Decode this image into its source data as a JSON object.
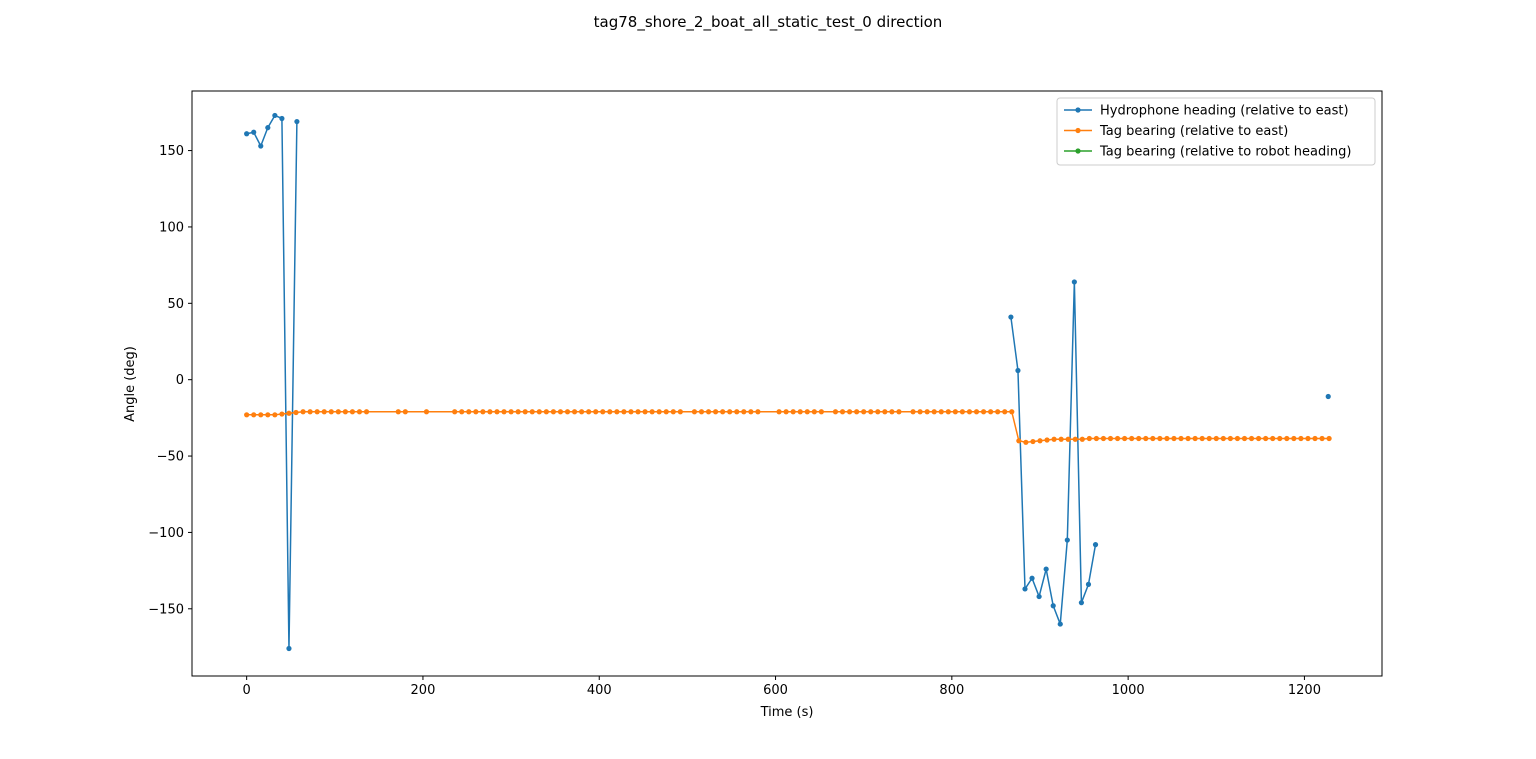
{
  "chart_data": {
    "type": "line",
    "title": "tag78_shore_2_boat_all_static_test_0 direction",
    "xlabel": "Time (s)",
    "ylabel": "Angle (deg)",
    "xlim": [
      -62,
      1288
    ],
    "ylim": [
      -194,
      189
    ],
    "xticks": [
      0,
      200,
      400,
      600,
      800,
      1000,
      1200
    ],
    "yticks": [
      -150,
      -100,
      -50,
      0,
      50,
      100,
      150
    ],
    "ytick_labels": [
      "−150",
      "−100",
      "−50",
      "0",
      "50",
      "100",
      "150"
    ],
    "grid": false,
    "legend_position": "top-right",
    "series": [
      {
        "name": "Hydrophone heading (relative to east)",
        "color": "#1f77b4",
        "segments": [
          [
            [
              0,
              161
            ],
            [
              8,
              162
            ],
            [
              16,
              153
            ],
            [
              24,
              165
            ],
            [
              32,
              173
            ],
            [
              40,
              171
            ],
            [
              48,
              -176
            ],
            [
              57,
              169
            ]
          ],
          [
            [
              867,
              41
            ],
            [
              875,
              6
            ],
            [
              883,
              -137
            ],
            [
              891,
              -130
            ],
            [
              899,
              -142
            ],
            [
              907,
              -124
            ],
            [
              915,
              -148
            ],
            [
              923,
              -160
            ],
            [
              931,
              -105
            ],
            [
              939,
              64
            ],
            [
              947,
              -146
            ],
            [
              955,
              -134
            ],
            [
              963,
              -108
            ]
          ],
          [
            [
              1227,
              -11
            ]
          ]
        ]
      },
      {
        "name": "Tag bearing (relative to east)",
        "color": "#ff7f0e",
        "segments": [
          [
            [
              0,
              -23
            ],
            [
              8,
              -23
            ],
            [
              16,
              -23
            ],
            [
              24,
              -23
            ],
            [
              32,
              -23
            ],
            [
              40,
              -22.5
            ],
            [
              48,
              -22
            ],
            [
              56,
              -21.5
            ],
            [
              64,
              -21
            ],
            [
              72,
              -21
            ],
            [
              80,
              -21
            ],
            [
              88,
              -21
            ],
            [
              96,
              -21
            ],
            [
              104,
              -21
            ],
            [
              112,
              -21
            ],
            [
              120,
              -21
            ],
            [
              128,
              -21
            ],
            [
              136,
              -21
            ],
            [
              172,
              -21
            ],
            [
              180,
              -21
            ],
            [
              204,
              -21
            ],
            [
              236,
              -21
            ],
            [
              244,
              -21
            ],
            [
              252,
              -21
            ],
            [
              260,
              -21
            ],
            [
              268,
              -21
            ],
            [
              276,
              -21
            ],
            [
              284,
              -21
            ],
            [
              292,
              -21
            ],
            [
              300,
              -21
            ],
            [
              308,
              -21
            ],
            [
              316,
              -21
            ],
            [
              324,
              -21
            ],
            [
              332,
              -21
            ],
            [
              340,
              -21
            ],
            [
              348,
              -21
            ],
            [
              356,
              -21
            ],
            [
              364,
              -21
            ],
            [
              372,
              -21
            ],
            [
              380,
              -21
            ],
            [
              388,
              -21
            ],
            [
              396,
              -21
            ],
            [
              404,
              -21
            ],
            [
              412,
              -21
            ],
            [
              420,
              -21
            ],
            [
              428,
              -21
            ],
            [
              436,
              -21
            ],
            [
              444,
              -21
            ],
            [
              452,
              -21
            ],
            [
              460,
              -21
            ],
            [
              468,
              -21
            ],
            [
              476,
              -21
            ],
            [
              484,
              -21
            ],
            [
              492,
              -21
            ],
            [
              508,
              -21
            ],
            [
              516,
              -21
            ],
            [
              524,
              -21
            ],
            [
              532,
              -21
            ],
            [
              540,
              -21
            ],
            [
              548,
              -21
            ],
            [
              556,
              -21
            ],
            [
              564,
              -21
            ],
            [
              572,
              -21
            ],
            [
              580,
              -21
            ],
            [
              604,
              -21
            ],
            [
              612,
              -21
            ],
            [
              620,
              -21
            ],
            [
              628,
              -21
            ],
            [
              636,
              -21
            ],
            [
              644,
              -21
            ],
            [
              652,
              -21
            ],
            [
              668,
              -21
            ],
            [
              676,
              -21
            ],
            [
              684,
              -21
            ],
            [
              692,
              -21
            ],
            [
              700,
              -21
            ],
            [
              708,
              -21
            ],
            [
              716,
              -21
            ],
            [
              724,
              -21
            ],
            [
              732,
              -21
            ],
            [
              740,
              -21
            ],
            [
              756,
              -21
            ],
            [
              764,
              -21
            ],
            [
              772,
              -21
            ],
            [
              780,
              -21
            ],
            [
              788,
              -21
            ],
            [
              796,
              -21
            ],
            [
              804,
              -21
            ],
            [
              812,
              -21
            ],
            [
              820,
              -21
            ],
            [
              828,
              -21
            ],
            [
              836,
              -21
            ],
            [
              844,
              -21
            ],
            [
              852,
              -21
            ],
            [
              860,
              -21
            ],
            [
              868,
              -21
            ],
            [
              876,
              -40
            ],
            [
              884,
              -41
            ],
            [
              892,
              -40.5
            ],
            [
              900,
              -40
            ],
            [
              908,
              -39.5
            ],
            [
              916,
              -39
            ],
            [
              924,
              -39
            ],
            [
              932,
              -39
            ],
            [
              940,
              -39
            ],
            [
              948,
              -39
            ],
            [
              956,
              -38.5
            ],
            [
              964,
              -38.5
            ],
            [
              972,
              -38.5
            ],
            [
              980,
              -38.5
            ],
            [
              988,
              -38.5
            ],
            [
              996,
              -38.5
            ],
            [
              1004,
              -38.5
            ],
            [
              1012,
              -38.5
            ],
            [
              1020,
              -38.5
            ],
            [
              1028,
              -38.5
            ],
            [
              1036,
              -38.5
            ],
            [
              1044,
              -38.5
            ],
            [
              1052,
              -38.5
            ],
            [
              1060,
              -38.5
            ],
            [
              1068,
              -38.5
            ],
            [
              1076,
              -38.5
            ],
            [
              1084,
              -38.5
            ],
            [
              1092,
              -38.5
            ],
            [
              1100,
              -38.5
            ],
            [
              1108,
              -38.5
            ],
            [
              1116,
              -38.5
            ],
            [
              1124,
              -38.5
            ],
            [
              1132,
              -38.5
            ],
            [
              1140,
              -38.5
            ],
            [
              1148,
              -38.5
            ],
            [
              1156,
              -38.5
            ],
            [
              1164,
              -38.5
            ],
            [
              1172,
              -38.5
            ],
            [
              1180,
              -38.5
            ],
            [
              1188,
              -38.5
            ],
            [
              1196,
              -38.5
            ],
            [
              1204,
              -38.5
            ],
            [
              1212,
              -38.5
            ],
            [
              1220,
              -38.5
            ],
            [
              1228,
              -38.5
            ]
          ]
        ]
      },
      {
        "name": "Tag bearing (relative to robot heading)",
        "color": "#2ca02c",
        "segments": []
      }
    ]
  }
}
